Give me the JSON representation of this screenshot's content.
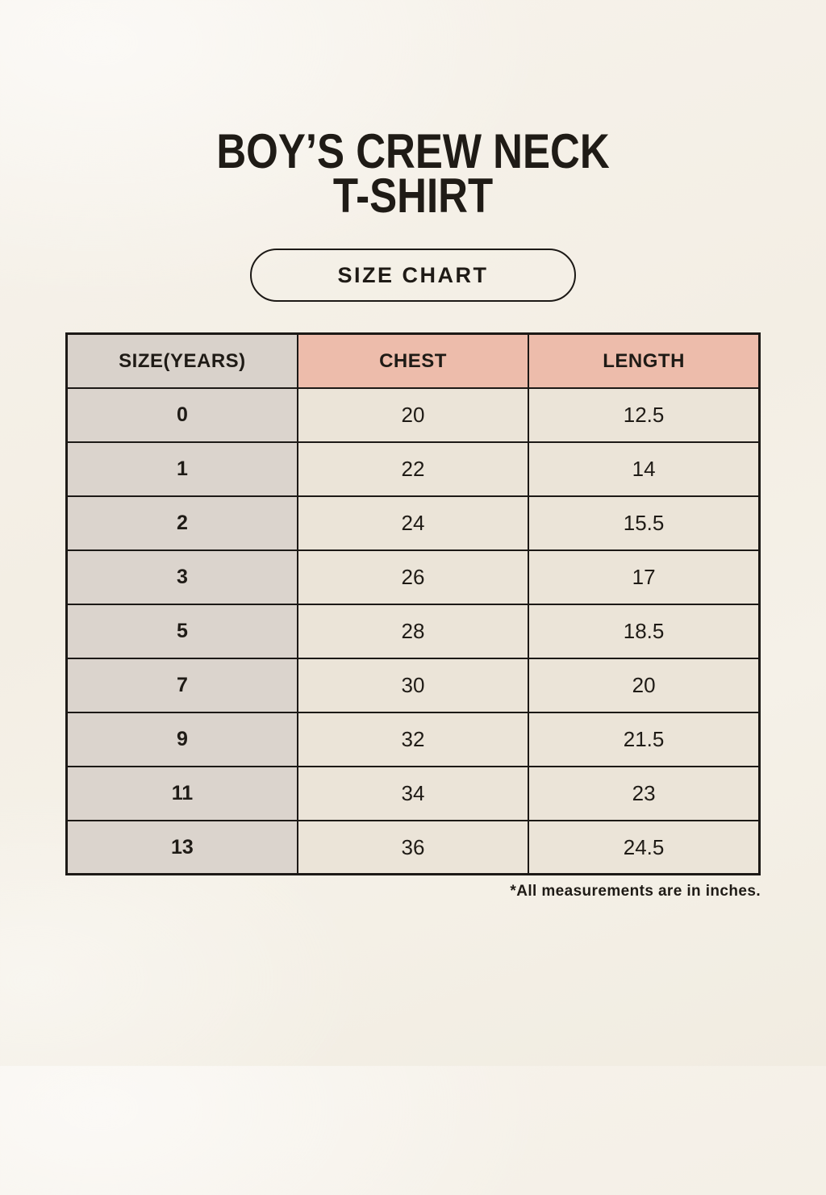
{
  "title": {
    "line1": "BOY’S CREW NECK",
    "line2": "T-SHIRT"
  },
  "size_chart_button": {
    "label": "SIZE CHART"
  },
  "table": {
    "columns": [
      "SIZE(YEARS)",
      "CHEST",
      "LENGTH"
    ],
    "rows": [
      [
        "0",
        "20",
        "12.5"
      ],
      [
        "1",
        "22",
        "14"
      ],
      [
        "2",
        "24",
        "15.5"
      ],
      [
        "3",
        "26",
        "17"
      ],
      [
        "5",
        "28",
        "18.5"
      ],
      [
        "7",
        "30",
        "20"
      ],
      [
        "9",
        "32",
        "21.5"
      ],
      [
        "11",
        "34",
        "23"
      ],
      [
        "13",
        "36",
        "24.5"
      ]
    ],
    "units_note": "*All measurements are in inches."
  },
  "colors": {
    "page_background": "#f4f0e7",
    "header_size_bg": "#d9d2cb",
    "header_measure_bg": "#edbcab",
    "size_column_bg": "#dbd4cd",
    "cell_bg": "#ebe4d8",
    "border": "#1c1916",
    "text": "#1f1b16"
  }
}
